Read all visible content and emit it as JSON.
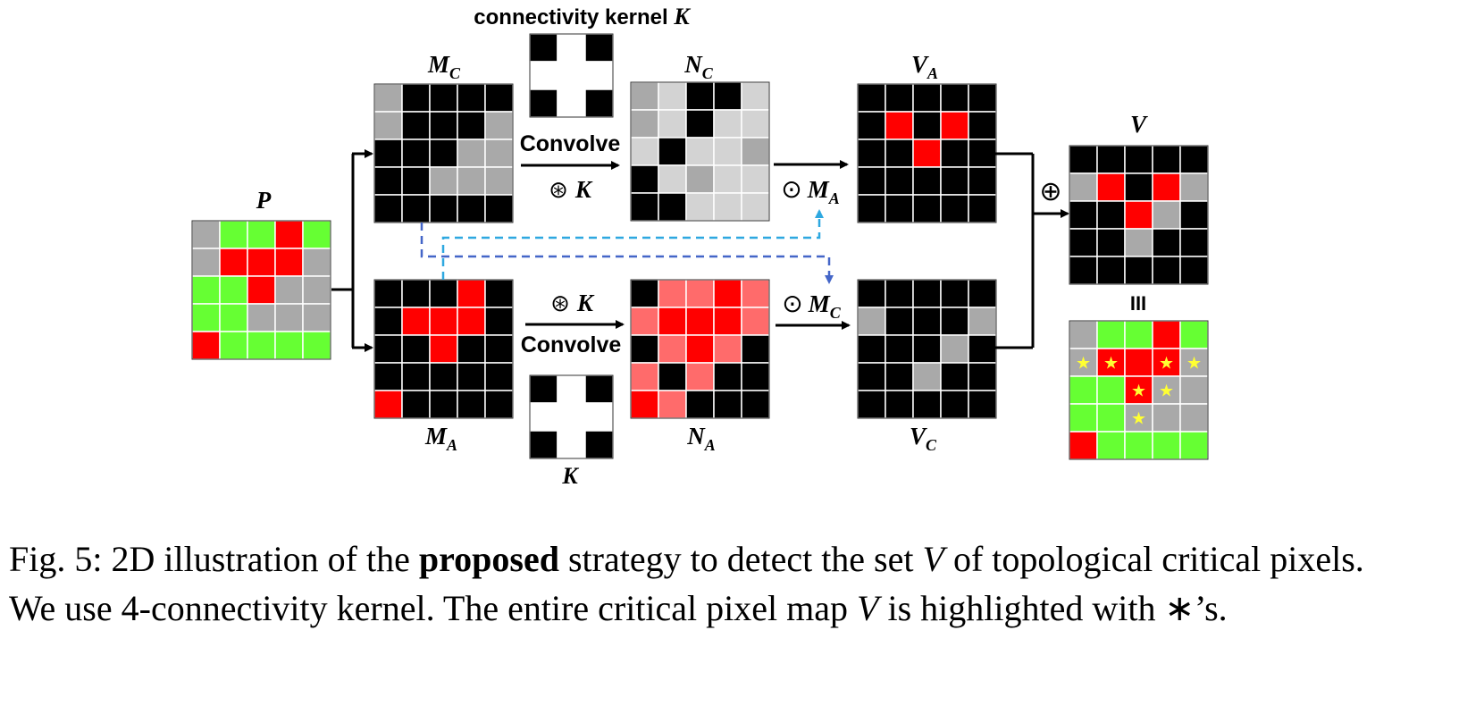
{
  "colors": {
    "black": "#000000",
    "gray": "#a9a9a9",
    "light_gray": "#d3d3d3",
    "red": "#ff0000",
    "light_red": "#ff6b6b",
    "green": "#66ff33",
    "white": "#ffffff",
    "star": "#ffff33",
    "arrow_light": "#2ea8e0",
    "arrow_dark": "#4466c8"
  },
  "labels": {
    "p": "P",
    "mc_base": "M",
    "mc_sub": "C",
    "ma_base": "M",
    "ma_sub": "A",
    "nc_base": "N",
    "nc_sub": "C",
    "na_base": "N",
    "na_sub": "A",
    "va_base": "V",
    "va_sub": "A",
    "vc_base": "V",
    "vc_sub": "C",
    "v": "V",
    "iii": "III",
    "kernel_top_prefix": "connectivity kernel ",
    "kernel_top_symbol": "K",
    "kernel_bottom": "K",
    "convolve_top": "Convolve",
    "convolve_bottom": "Convolve",
    "conv_op_symbol": "⊛",
    "k_symbol": "K",
    "hadamard_symbol": "⊙",
    "hadamard_top_base": "M",
    "hadamard_top_sub": "A",
    "hadamard_bottom_base": "M",
    "hadamard_bottom_sub": "C",
    "oplus": "⊕",
    "star_glyph": "★"
  },
  "grids": {
    "P": [
      "gGGRG",
      "gRRRg",
      "GGRgg",
      "GGggg",
      "RGGGG"
    ],
    "MC": [
      "gkkkk",
      "gkkkg",
      "kkkgg",
      "kkggg",
      "kkkkk"
    ],
    "MA": [
      "kkkRk",
      "kRRRk",
      "kkRkk",
      "kkkkk",
      "Rkkkk"
    ],
    "K": [
      "kwk",
      "www",
      "kwk"
    ],
    "NC": [
      "glkkl",
      "glkll",
      "lkllg",
      "klgll",
      "kklll"
    ],
    "NA": [
      "krrRr",
      "rRRRr",
      "krRrk",
      "rkrkk",
      "Rrkkk"
    ],
    "VA": [
      "kkkkk",
      "kRkRk",
      "kkRkk",
      "kkkkk",
      "kkkkk"
    ],
    "VC": [
      "kkkkk",
      "gkkkg",
      "kkkgk",
      "kkgkk",
      "kkkkk"
    ],
    "V": [
      "kkkkk",
      "gRkRg",
      "kkRgk",
      "kkgkk",
      "kkkkk"
    ],
    "III": [
      "gGGRG",
      "gRRRg",
      "GGRgg",
      "GGggg",
      "RGGGG"
    ]
  },
  "stars": [
    [
      1,
      0
    ],
    [
      1,
      1
    ],
    [
      1,
      3
    ],
    [
      1,
      4
    ],
    [
      2,
      2
    ],
    [
      2,
      3
    ],
    [
      3,
      2
    ]
  ],
  "caption": {
    "prefix": "Fig. 5: 2D illustration of the ",
    "bold": "proposed",
    "mid1": " strategy to detect the set ",
    "v1": "V",
    "mid2": " of topological critical pixels. We use 4-connectivity kernel. The entire critical pixel map ",
    "v2": "V",
    "mid3": " is highlighted with ",
    "ast": "∗",
    "end": "’s."
  }
}
